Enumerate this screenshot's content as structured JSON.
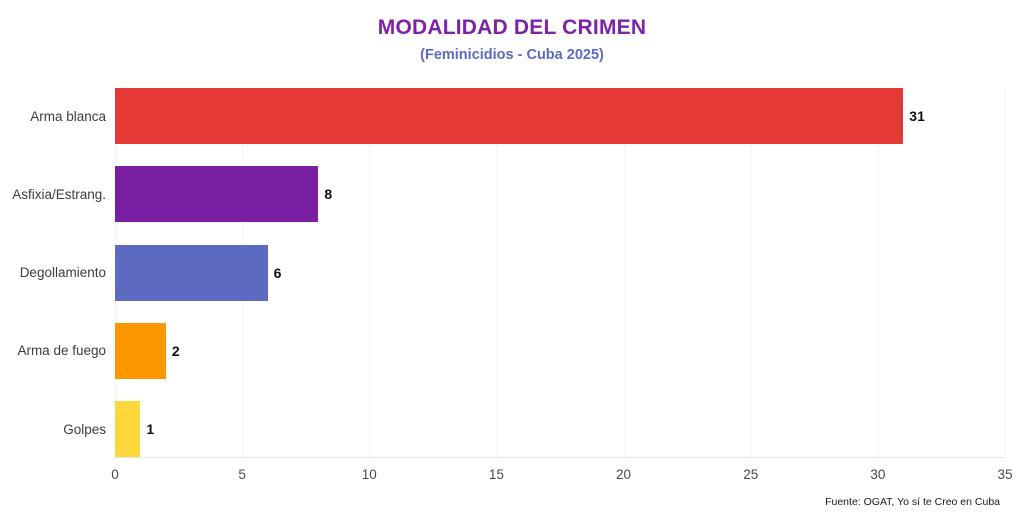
{
  "header": {
    "title": "MODALIDAD DEL CRIMEN",
    "subtitle": "(Feminicidios - Cuba 2025)"
  },
  "footer": {
    "source": "Fuente: OGAT, Yo sí te Creo en Cuba"
  },
  "colors": {
    "title_text": "#7e22a8",
    "subtitle_text": "#5c6bc0",
    "category_text": "#3c3c3c",
    "value_text": "#111111",
    "axis_text": "#4a4a4a",
    "gridline": "#f3f3f3",
    "baseline": "#e4e4e4",
    "background": "#ffffff"
  },
  "chart_data": {
    "type": "bar",
    "orientation": "horizontal",
    "title": "MODALIDAD DEL CRIMEN",
    "subtitle": "(Feminicidios - Cuba 2025)",
    "categories": [
      "Arma blanca",
      "Asfixia/Estrang.",
      "Degollamiento",
      "Arma de fuego",
      "Golpes"
    ],
    "values": [
      31,
      8,
      6,
      2,
      1
    ],
    "bar_colors": [
      "#e53935",
      "#7b1fa2",
      "#5c6bc0",
      "#fc9702",
      "#fdd73c"
    ],
    "xlim": [
      0,
      35
    ],
    "xticks": [
      0,
      5,
      10,
      15,
      20,
      25,
      30,
      35
    ],
    "grid": "vertical-only",
    "value_labels": true,
    "legend": "none",
    "source": "Fuente: OGAT, Yo sí te Creo en Cuba"
  }
}
